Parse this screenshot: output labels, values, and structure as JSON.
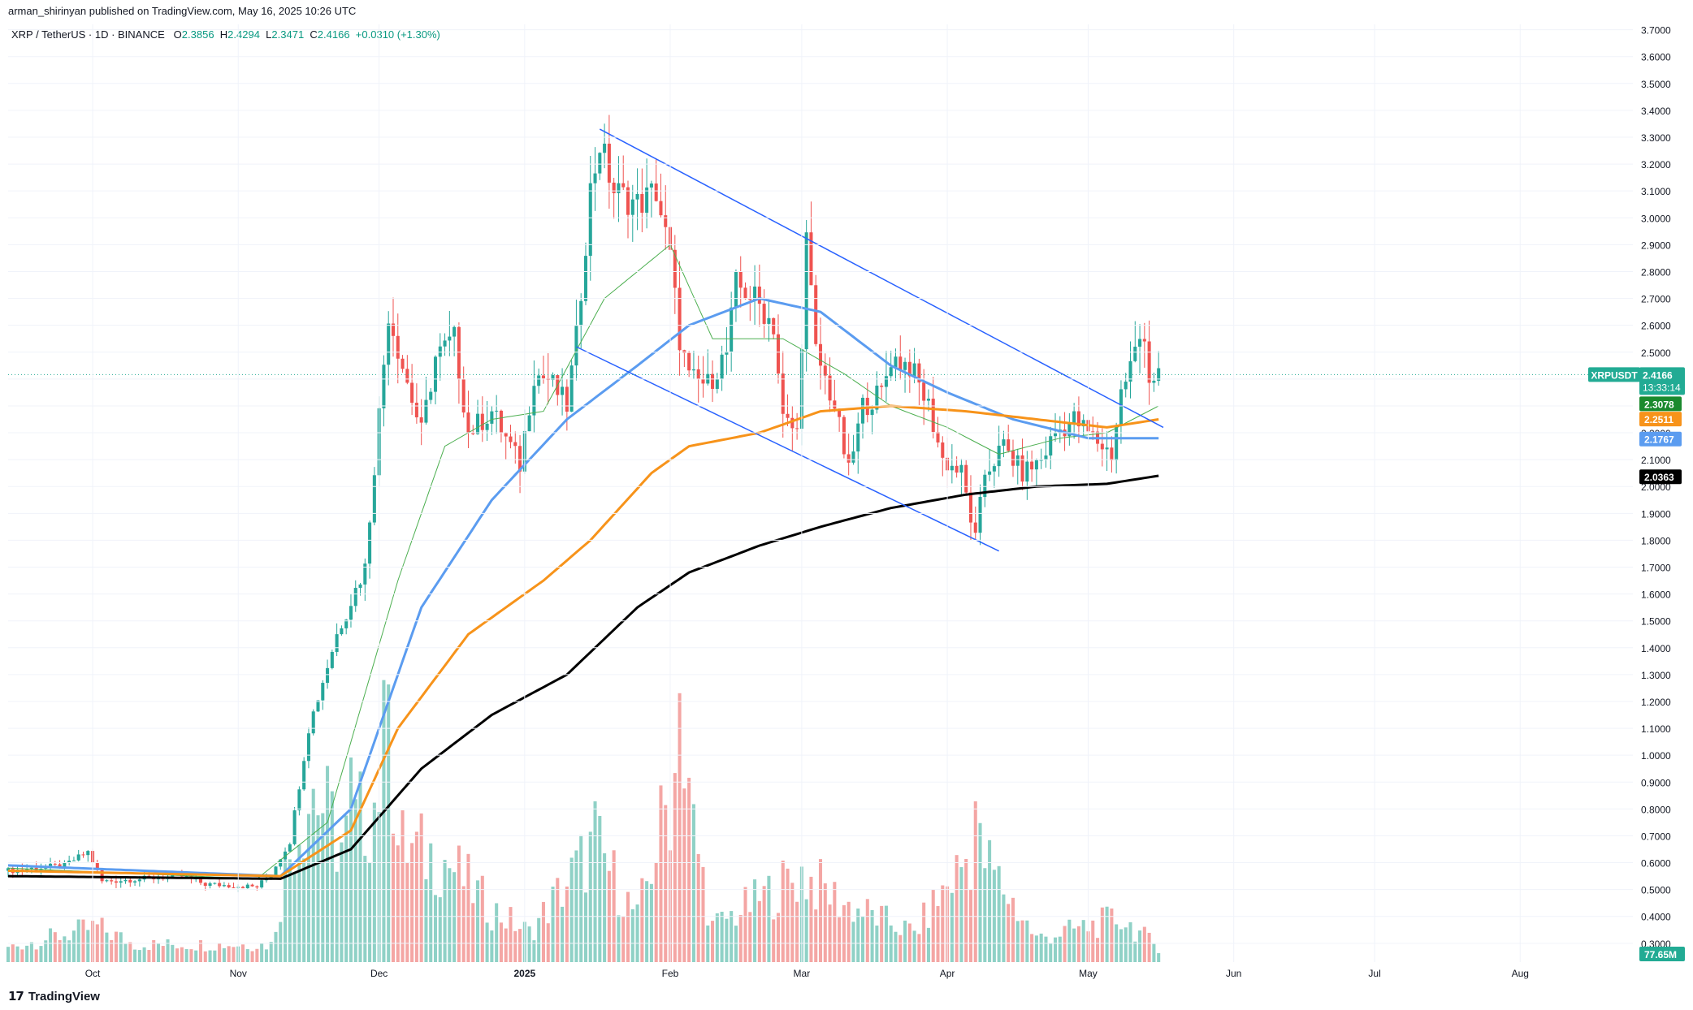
{
  "header": {
    "publisher": "arman_shirinyan published on TradingView.com, May 16, 2025 10:26 UTC",
    "symbol": "XRP / TetherUS · 1D · BINANCE",
    "open_label": "O",
    "open": "2.3856",
    "high_label": "H",
    "high": "2.4294",
    "low_label": "L",
    "low": "2.3471",
    "close_label": "C",
    "close": "2.4166",
    "change": "+0.0310 (+1.30%)"
  },
  "brand": "TradingView",
  "colors": {
    "up": "#26a69a",
    "down": "#ef5350",
    "vol_up": "#8fd1c6",
    "vol_down": "#f4a6a4",
    "ma_fast": "#4caf50",
    "ma_blue": "#5b9cf0",
    "ma_orange": "#f7931a",
    "ma_black": "#000000",
    "trendline": "#2962ff",
    "price_line": "#22ab94"
  },
  "chart_data": {
    "type": "candlestick",
    "symbol": "XRPUSDT",
    "y_axis": {
      "ticks": [
        "3.7000",
        "3.6000",
        "3.5000",
        "3.4000",
        "3.3000",
        "3.2000",
        "3.1000",
        "3.0000",
        "2.9000",
        "2.8000",
        "2.7000",
        "2.6000",
        "2.5000",
        "2.4000",
        "2.3000",
        "2.2000",
        "2.1000",
        "2.0000",
        "1.9000",
        "1.8000",
        "1.7000",
        "1.6000",
        "1.5000",
        "1.4000",
        "1.3000",
        "1.2000",
        "1.1000",
        "1.0000",
        "0.9000",
        "0.8000",
        "0.7000",
        "0.6000",
        "0.5000",
        "0.4000",
        "0.3000"
      ],
      "range": [
        0.23,
        3.72
      ]
    },
    "x_axis": {
      "ticks": [
        {
          "label": "Oct",
          "date": "2024-10-01"
        },
        {
          "label": "Nov",
          "date": "2024-11-01"
        },
        {
          "label": "Dec",
          "date": "2024-12-01"
        },
        {
          "label": "2025",
          "date": "2025-01-01"
        },
        {
          "label": "Feb",
          "date": "2025-02-01"
        },
        {
          "label": "Mar",
          "date": "2025-03-01"
        },
        {
          "label": "Apr",
          "date": "2025-04-01"
        },
        {
          "label": "May",
          "date": "2025-05-01"
        },
        {
          "label": "Jun",
          "date": "2025-06-01"
        },
        {
          "label": "Jul",
          "date": "2025-07-01"
        },
        {
          "label": "Aug",
          "date": "2025-08-01"
        }
      ],
      "range": [
        "2024-09-13",
        "2025-08-25"
      ]
    },
    "price_key": [
      {
        "date": "2024-09-13",
        "price": 0.57
      },
      {
        "date": "2024-09-25",
        "price": 0.59
      },
      {
        "date": "2024-09-30",
        "price": 0.64
      },
      {
        "date": "2024-10-03",
        "price": 0.53
      },
      {
        "date": "2024-10-20",
        "price": 0.55
      },
      {
        "date": "2024-10-25",
        "price": 0.52
      },
      {
        "date": "2024-11-05",
        "price": 0.51
      },
      {
        "date": "2024-11-08",
        "price": 0.56
      },
      {
        "date": "2024-11-12",
        "price": 0.68
      },
      {
        "date": "2024-11-16",
        "price": 1.1
      },
      {
        "date": "2024-11-22",
        "price": 1.45
      },
      {
        "date": "2024-11-28",
        "price": 1.7
      },
      {
        "date": "2024-12-03",
        "price": 2.65
      },
      {
        "date": "2024-12-06",
        "price": 2.45
      },
      {
        "date": "2024-12-10",
        "price": 2.2
      },
      {
        "date": "2024-12-13",
        "price": 2.48
      },
      {
        "date": "2024-12-17",
        "price": 2.55
      },
      {
        "date": "2024-12-20",
        "price": 2.2
      },
      {
        "date": "2024-12-25",
        "price": 2.28
      },
      {
        "date": "2024-12-31",
        "price": 2.08
      },
      {
        "date": "2025-01-03",
        "price": 2.42
      },
      {
        "date": "2025-01-06",
        "price": 2.4
      },
      {
        "date": "2025-01-10",
        "price": 2.3
      },
      {
        "date": "2025-01-12",
        "price": 2.55
      },
      {
        "date": "2025-01-15",
        "price": 3.1
      },
      {
        "date": "2025-01-17",
        "price": 3.28
      },
      {
        "date": "2025-01-20",
        "price": 3.1
      },
      {
        "date": "2025-01-25",
        "price": 3.05
      },
      {
        "date": "2025-01-29",
        "price": 3.1
      },
      {
        "date": "2025-02-01",
        "price": 2.85
      },
      {
        "date": "2025-02-03",
        "price": 2.55
      },
      {
        "date": "2025-02-05",
        "price": 2.4
      },
      {
        "date": "2025-02-09",
        "price": 2.38
      },
      {
        "date": "2025-02-13",
        "price": 2.5
      },
      {
        "date": "2025-02-15",
        "price": 2.75
      },
      {
        "date": "2025-02-19",
        "price": 2.7
      },
      {
        "date": "2025-02-23",
        "price": 2.6
      },
      {
        "date": "2025-02-25",
        "price": 2.25
      },
      {
        "date": "2025-02-28",
        "price": 2.2
      },
      {
        "date": "2025-03-02",
        "price": 2.92
      },
      {
        "date": "2025-03-04",
        "price": 2.5
      },
      {
        "date": "2025-03-08",
        "price": 2.3
      },
      {
        "date": "2025-03-11",
        "price": 2.05
      },
      {
        "date": "2025-03-14",
        "price": 2.3
      },
      {
        "date": "2025-03-18",
        "price": 2.35
      },
      {
        "date": "2025-03-20",
        "price": 2.48
      },
      {
        "date": "2025-03-24",
        "price": 2.45
      },
      {
        "date": "2025-03-28",
        "price": 2.3
      },
      {
        "date": "2025-03-31",
        "price": 2.1
      },
      {
        "date": "2025-04-04",
        "price": 2.05
      },
      {
        "date": "2025-04-07",
        "price": 1.8
      },
      {
        "date": "2025-04-09",
        "price": 2.05
      },
      {
        "date": "2025-04-13",
        "price": 2.15
      },
      {
        "date": "2025-04-17",
        "price": 2.05
      },
      {
        "date": "2025-04-21",
        "price": 2.1
      },
      {
        "date": "2025-04-24",
        "price": 2.2
      },
      {
        "date": "2025-04-28",
        "price": 2.25
      },
      {
        "date": "2025-05-01",
        "price": 2.2
      },
      {
        "date": "2025-05-06",
        "price": 2.12
      },
      {
        "date": "2025-05-08",
        "price": 2.35
      },
      {
        "date": "2025-05-12",
        "price": 2.55
      },
      {
        "date": "2025-05-13",
        "price": 2.58
      },
      {
        "date": "2025-05-14",
        "price": 2.4
      },
      {
        "date": "2025-05-16",
        "price": 2.4166
      }
    ],
    "moving_averages": [
      {
        "color": "#4caf50",
        "key": [
          [
            "2024-09-13",
            0.58
          ],
          [
            "2024-11-05",
            0.54
          ],
          [
            "2024-11-20",
            0.75
          ],
          [
            "2024-12-05",
            1.65
          ],
          [
            "2024-12-15",
            2.15
          ],
          [
            "2024-12-25",
            2.25
          ],
          [
            "2025-01-05",
            2.28
          ],
          [
            "2025-01-18",
            2.7
          ],
          [
            "2025-02-01",
            2.9
          ],
          [
            "2025-02-10",
            2.55
          ],
          [
            "2025-02-25",
            2.55
          ],
          [
            "2025-03-10",
            2.42
          ],
          [
            "2025-03-20",
            2.3
          ],
          [
            "2025-04-01",
            2.22
          ],
          [
            "2025-04-12",
            2.12
          ],
          [
            "2025-04-25",
            2.18
          ],
          [
            "2025-05-05",
            2.2
          ],
          [
            "2025-05-16",
            2.3
          ]
        ]
      },
      {
        "color": "#5b9cf0",
        "key": [
          [
            "2024-09-13",
            0.59
          ],
          [
            "2024-11-10",
            0.55
          ],
          [
            "2024-11-25",
            0.8
          ],
          [
            "2024-12-10",
            1.55
          ],
          [
            "2024-12-25",
            1.95
          ],
          [
            "2025-01-10",
            2.25
          ],
          [
            "2025-01-25",
            2.45
          ],
          [
            "2025-02-05",
            2.6
          ],
          [
            "2025-02-20",
            2.7
          ],
          [
            "2025-03-05",
            2.65
          ],
          [
            "2025-03-20",
            2.45
          ],
          [
            "2025-04-01",
            2.35
          ],
          [
            "2025-04-15",
            2.25
          ],
          [
            "2025-05-01",
            2.18
          ],
          [
            "2025-05-16",
            2.18
          ]
        ]
      },
      {
        "color": "#f7931a",
        "key": [
          [
            "2024-09-13",
            0.57
          ],
          [
            "2024-11-10",
            0.55
          ],
          [
            "2024-11-25",
            0.72
          ],
          [
            "2024-12-05",
            1.1
          ],
          [
            "2024-12-20",
            1.45
          ],
          [
            "2025-01-05",
            1.65
          ],
          [
            "2025-01-15",
            1.8
          ],
          [
            "2025-01-28",
            2.05
          ],
          [
            "2025-02-05",
            2.15
          ],
          [
            "2025-02-20",
            2.2
          ],
          [
            "2025-03-05",
            2.28
          ],
          [
            "2025-03-20",
            2.3
          ],
          [
            "2025-04-05",
            2.28
          ],
          [
            "2025-04-20",
            2.25
          ],
          [
            "2025-05-05",
            2.22
          ],
          [
            "2025-05-16",
            2.25
          ]
        ]
      },
      {
        "color": "#000000",
        "key": [
          [
            "2024-09-13",
            0.55
          ],
          [
            "2024-11-10",
            0.54
          ],
          [
            "2024-11-25",
            0.65
          ],
          [
            "2024-12-10",
            0.95
          ],
          [
            "2024-12-25",
            1.15
          ],
          [
            "2025-01-10",
            1.3
          ],
          [
            "2025-01-25",
            1.55
          ],
          [
            "2025-02-05",
            1.68
          ],
          [
            "2025-02-20",
            1.78
          ],
          [
            "2025-03-05",
            1.85
          ],
          [
            "2025-03-20",
            1.92
          ],
          [
            "2025-04-05",
            1.97
          ],
          [
            "2025-04-20",
            2.0
          ],
          [
            "2025-05-05",
            2.01
          ],
          [
            "2025-05-16",
            2.04
          ]
        ]
      }
    ],
    "trendlines": [
      {
        "from": {
          "date": "2025-01-17",
          "price": 3.33
        },
        "to": {
          "date": "2025-05-17",
          "price": 2.22
        }
      },
      {
        "from": {
          "date": "2025-01-12",
          "price": 2.52
        },
        "to": {
          "date": "2025-04-12",
          "price": 1.76
        }
      }
    ],
    "volume_key": [
      {
        "date": "2024-09-13",
        "frac": 0.05
      },
      {
        "date": "2024-10-02",
        "frac": 0.12
      },
      {
        "date": "2024-10-10",
        "frac": 0.06
      },
      {
        "date": "2024-11-08",
        "frac": 0.06
      },
      {
        "date": "2024-11-13",
        "frac": 0.45
      },
      {
        "date": "2024-11-17",
        "frac": 0.6
      },
      {
        "date": "2024-11-23",
        "frac": 0.4
      },
      {
        "date": "2024-11-30",
        "frac": 0.55
      },
      {
        "date": "2024-12-03",
        "frac": 0.8
      },
      {
        "date": "2024-12-05",
        "frac": 0.4
      },
      {
        "date": "2024-12-15",
        "frac": 0.35
      },
      {
        "date": "2024-12-25",
        "frac": 0.18
      },
      {
        "date": "2025-01-02",
        "frac": 0.1
      },
      {
        "date": "2025-01-16",
        "frac": 0.4
      },
      {
        "date": "2025-01-25",
        "frac": 0.15
      },
      {
        "date": "2025-02-03",
        "frac": 0.7
      },
      {
        "date": "2025-02-10",
        "frac": 0.12
      },
      {
        "date": "2025-03-01",
        "frac": 0.3
      },
      {
        "date": "2025-03-10",
        "frac": 0.2
      },
      {
        "date": "2025-03-25",
        "frac": 0.1
      },
      {
        "date": "2025-04-07",
        "frac": 0.4
      },
      {
        "date": "2025-04-20",
        "frac": 0.08
      },
      {
        "date": "2025-05-08",
        "frac": 0.15
      },
      {
        "date": "2025-05-16",
        "frac": 0.05
      }
    ],
    "volume_spikes": [
      {
        "date": "2024-12-03",
        "frac": 0.95
      },
      {
        "date": "2025-02-03",
        "frac": 0.92
      },
      {
        "date": "2025-04-07",
        "frac": 0.55
      },
      {
        "date": "2024-11-25",
        "frac": 0.7
      },
      {
        "date": "2025-01-16",
        "frac": 0.55
      }
    ],
    "volume_value": "77.65M",
    "labels": [
      {
        "text": "XRPUSDT",
        "value": "2.4166",
        "sub": "13:33:14",
        "color": "#22ab94"
      },
      {
        "value": "2.3078",
        "color": "#1b8a2e"
      },
      {
        "value": "2.2511",
        "color": "#f7931a"
      },
      {
        "value": "2.1767",
        "color": "#5b9cf0"
      },
      {
        "value": "2.0363",
        "color": "#000000"
      }
    ]
  }
}
